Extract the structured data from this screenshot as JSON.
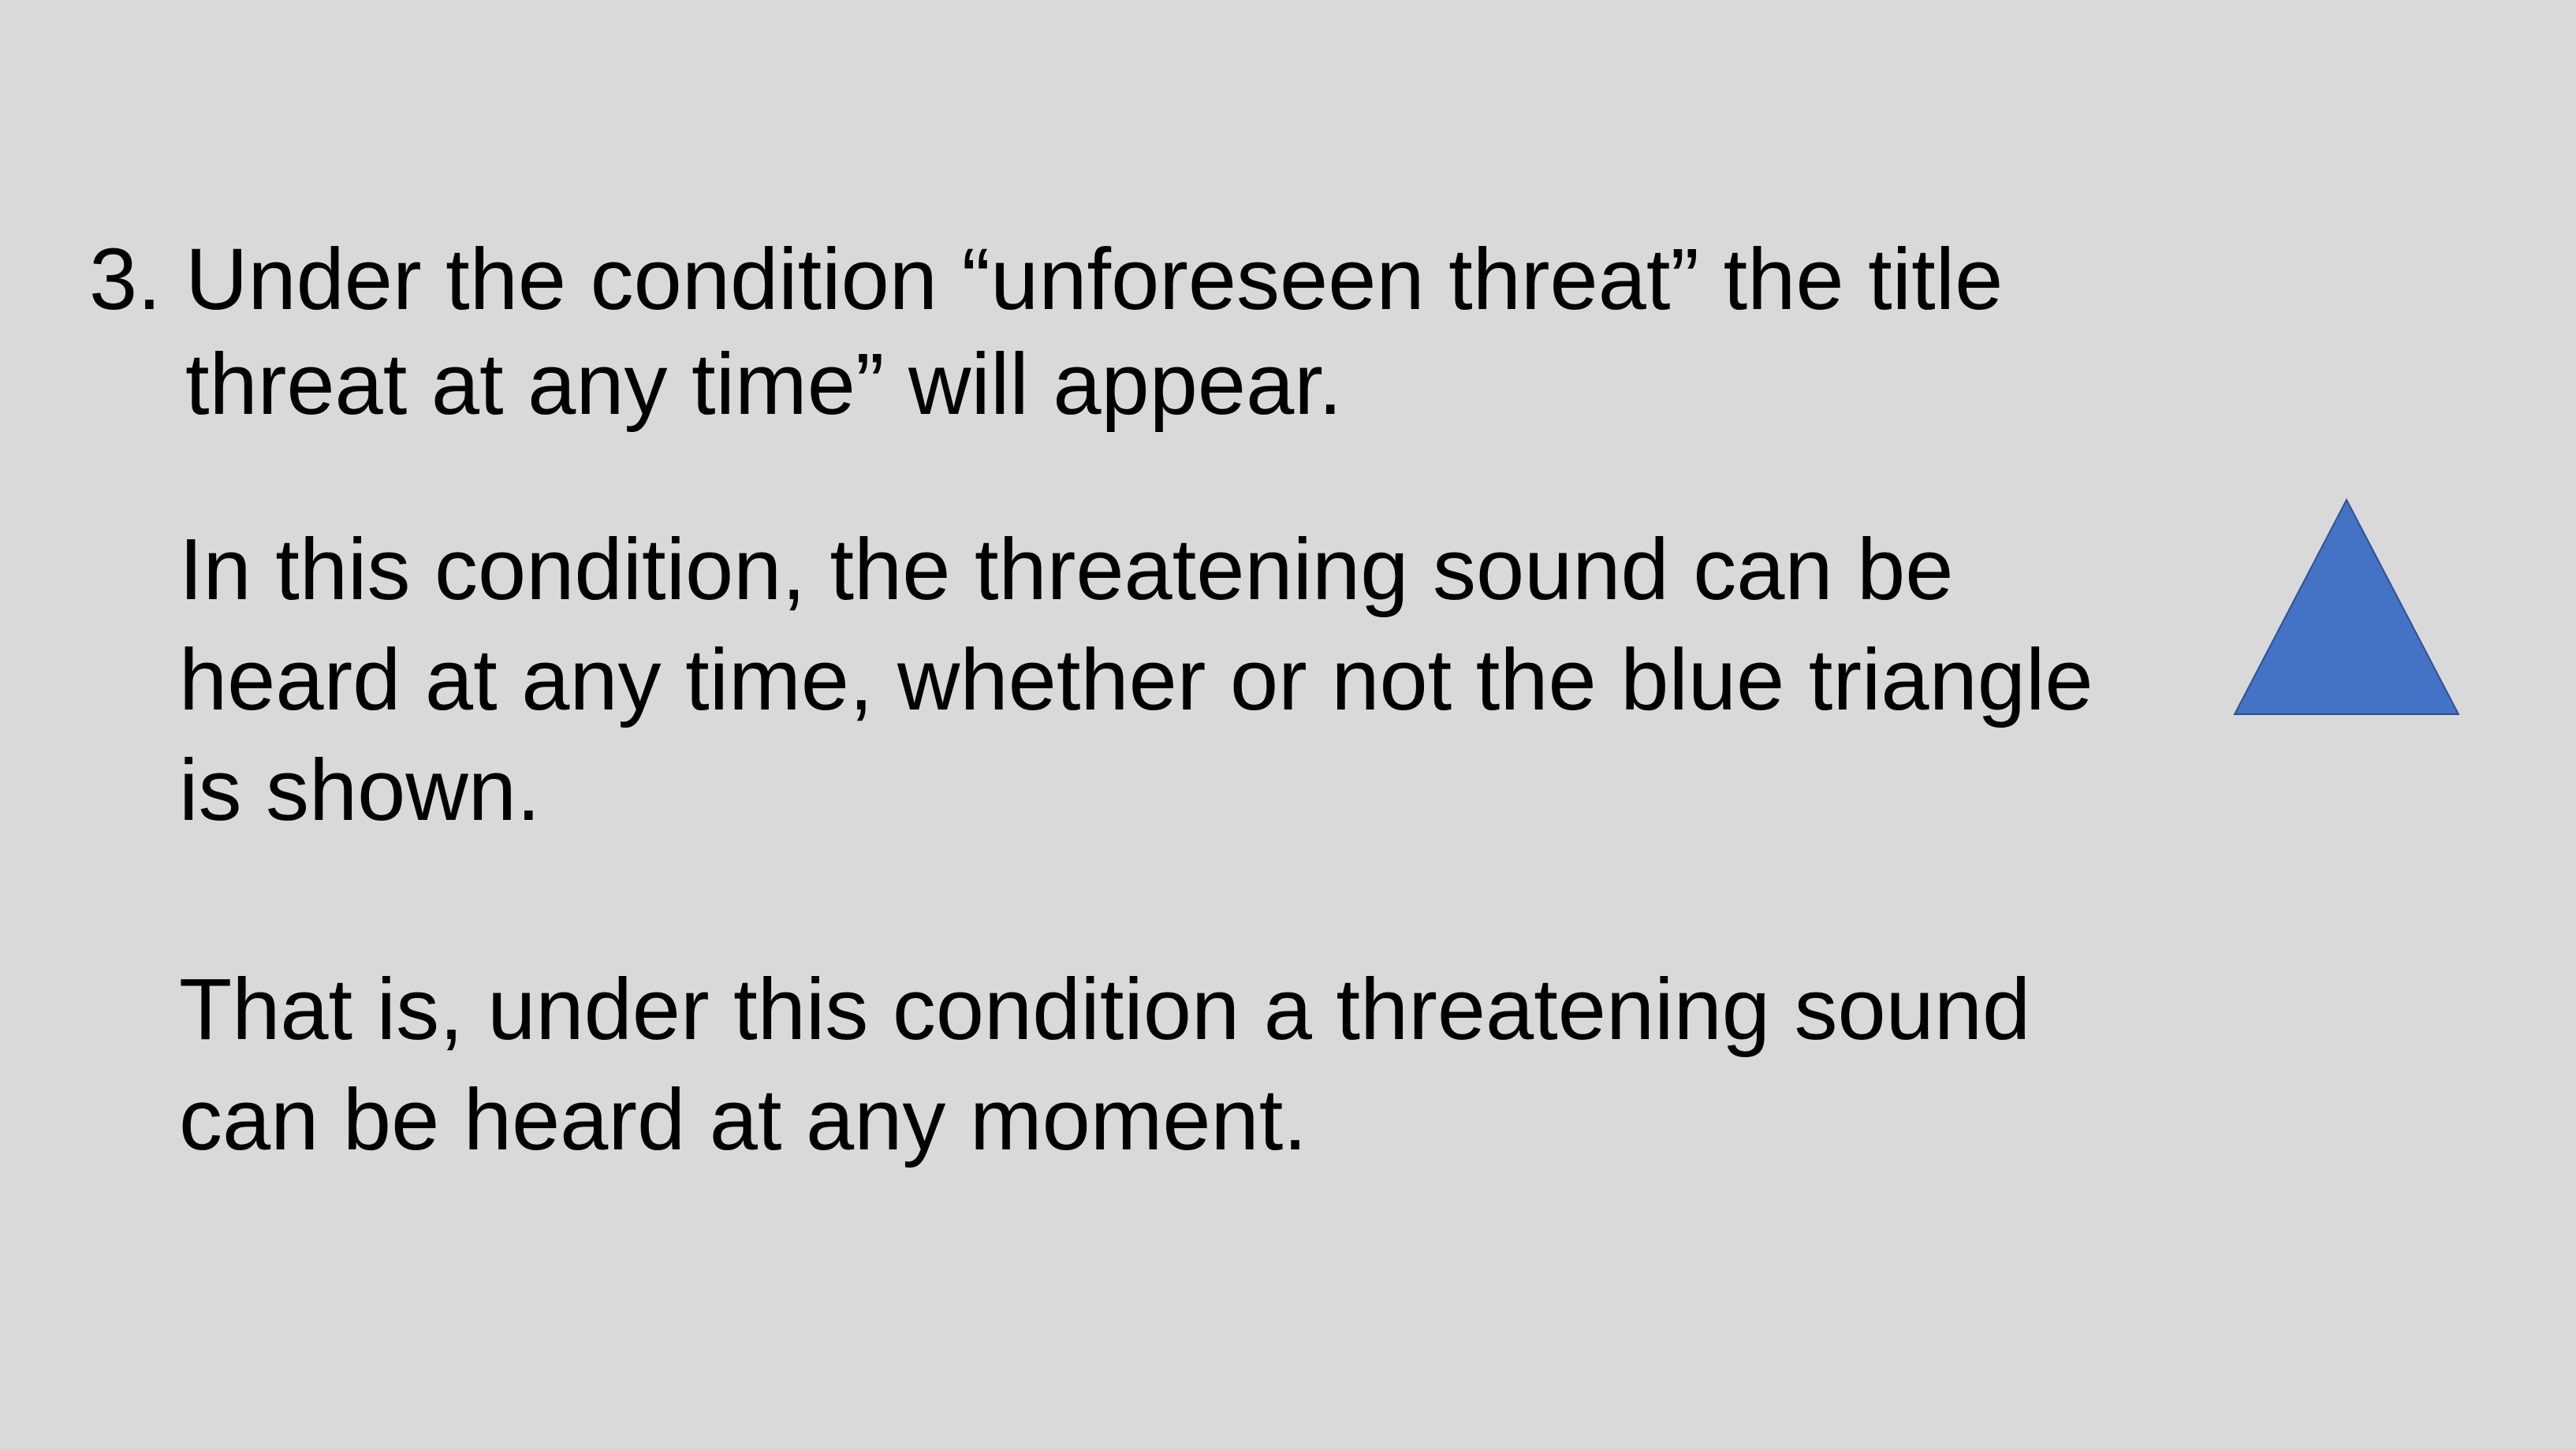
{
  "slide": {
    "heading": {
      "number": "3.",
      "line1": "Under the condition “unforeseen threat” the title",
      "line2": "threat at any time” will appear."
    },
    "paragraph1": {
      "line1": "In this condition, the threatening sound can be",
      "line2": "heard at any time, whether or not the blue triangle",
      "line3": "is shown."
    },
    "paragraph2": {
      "line1": "That is, under this condition a threatening sound",
      "line2": "can be heard at any moment."
    },
    "shape": {
      "icon": "triangle-icon",
      "fill": "#4472c4",
      "stroke": "#2f528f"
    }
  }
}
